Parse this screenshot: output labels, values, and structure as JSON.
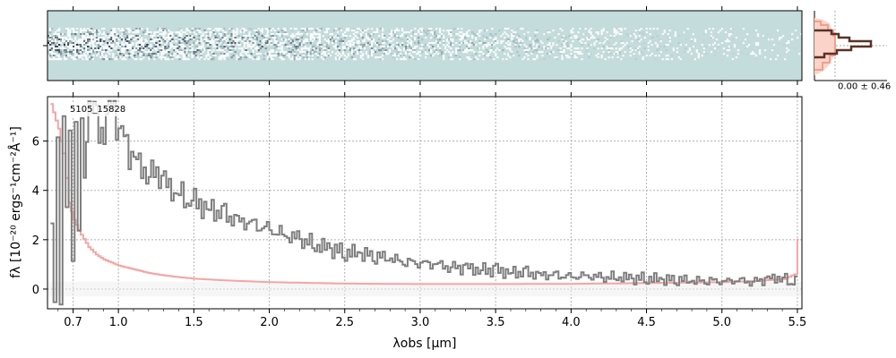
{
  "chart_data": [
    {
      "type": "heatmap",
      "name": "2D spectrum",
      "xlim": [
        0.53,
        5.53
      ],
      "background_color": "#c4dcdb",
      "dark_color": "#0b0f2a",
      "bright_color": "#ffffff"
    },
    {
      "type": "line",
      "name": "1D spectrum",
      "annotation": "5105_15828",
      "xlabel": "λobs [μm]",
      "ylabel": "fλ [10⁻²⁰ ergs⁻¹cm⁻²Å⁻¹]",
      "xlim": [
        0.53,
        5.53
      ],
      "ylim": [
        -0.8,
        7.8
      ],
      "x_tick_labels": [
        "0.7",
        "1.0",
        "1.5",
        "2.0",
        "2.5",
        "3.0",
        "3.5",
        "4.0",
        "4.5",
        "5.0",
        "5.5"
      ],
      "x_ticks": [
        0.7,
        1.0,
        1.5,
        2.0,
        2.5,
        3.0,
        3.5,
        4.0,
        4.5,
        5.0,
        5.5
      ],
      "y_ticks": [
        0,
        2,
        4,
        6
      ],
      "y_tick_labels": [
        "0",
        "2",
        "4",
        "6"
      ],
      "grid": true,
      "series": [
        {
          "role": "flux",
          "color": "#7f7f7f",
          "x": [
            0.55,
            0.57,
            0.59,
            0.61,
            0.63,
            0.65,
            0.67,
            0.69,
            0.71,
            0.73,
            0.75,
            0.77,
            0.8,
            0.85,
            0.9,
            0.95,
            1.0,
            1.05,
            1.1,
            1.15,
            1.2,
            1.25,
            1.3,
            1.35,
            1.4,
            1.45,
            1.5,
            1.6,
            1.7,
            1.8,
            1.9,
            2.0,
            2.1,
            2.2,
            2.3,
            2.4,
            2.5,
            2.6,
            2.7,
            2.8,
            2.9,
            3.0,
            3.1,
            3.2,
            3.3,
            3.4,
            3.5,
            3.6,
            3.7,
            3.8,
            3.9,
            4.0,
            4.1,
            4.2,
            4.3,
            4.4,
            4.5,
            4.6,
            4.7,
            4.8,
            4.9,
            5.0,
            5.1,
            5.2,
            5.3,
            5.4,
            5.45,
            5.5
          ],
          "y": [
            2.5,
            -0.5,
            5.5,
            -0.8,
            7.2,
            3.0,
            5.8,
            1.2,
            6.5,
            2.0,
            7.0,
            4.5,
            7.5,
            6.8,
            6.2,
            7.8,
            6.5,
            5.8,
            5.2,
            5.0,
            4.6,
            4.8,
            4.3,
            4.0,
            3.9,
            3.6,
            3.5,
            3.3,
            3.0,
            2.8,
            2.6,
            2.4,
            2.2,
            2.0,
            1.8,
            1.6,
            1.5,
            1.4,
            1.35,
            1.2,
            1.1,
            1.05,
            1.0,
            0.9,
            0.85,
            0.8,
            0.75,
            0.7,
            0.65,
            0.6,
            0.55,
            0.5,
            0.55,
            0.45,
            0.5,
            0.4,
            0.45,
            0.35,
            0.4,
            0.3,
            0.35,
            0.3,
            0.35,
            0.3,
            0.4,
            0.5,
            0.2,
            0.6
          ]
        },
        {
          "role": "error",
          "color": "#f4a6a6",
          "x": [
            0.55,
            0.6,
            0.63,
            0.65,
            0.67,
            0.7,
            0.75,
            0.8,
            0.85,
            0.9,
            1.0,
            1.1,
            1.2,
            1.3,
            1.4,
            1.5,
            1.7,
            2.0,
            2.5,
            3.0,
            3.5,
            4.0,
            4.5,
            5.0,
            5.2,
            5.4,
            5.48,
            5.5,
            5.51
          ],
          "y": [
            7.5,
            6.5,
            5.5,
            4.5,
            3.5,
            2.8,
            2.2,
            1.7,
            1.4,
            1.2,
            0.95,
            0.8,
            0.65,
            0.55,
            0.48,
            0.42,
            0.35,
            0.28,
            0.22,
            0.2,
            0.2,
            0.21,
            0.24,
            0.28,
            0.32,
            0.4,
            0.6,
            2.0,
            7.8
          ]
        }
      ]
    },
    {
      "type": "histogram",
      "name": "pixel distribution",
      "annotation": "0.00 ± 0.46"
    }
  ]
}
